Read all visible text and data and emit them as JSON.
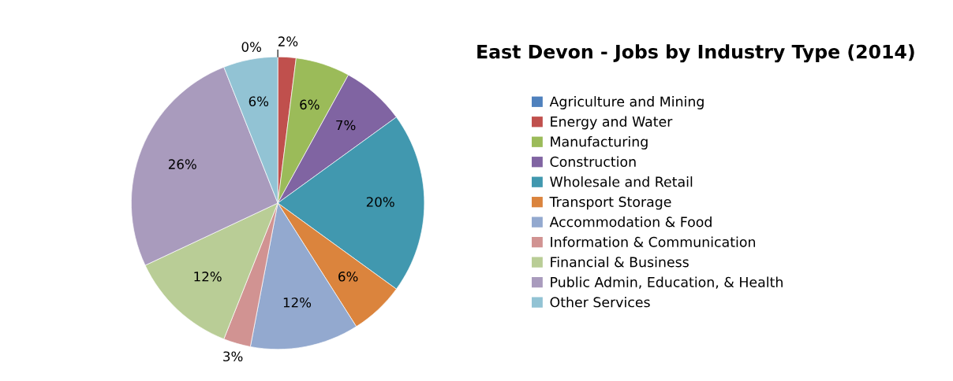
{
  "chart_data": {
    "type": "pie",
    "title": "East Devon - Jobs by Industry Type (2014)",
    "categories": [
      "Agriculture and Mining",
      "Energy and Water",
      "Manufacturing",
      "Construction",
      "Wholesale and Retail",
      "Transport Storage",
      "Accommodation & Food",
      "Information & Communication",
      "Financial & Business",
      "Public Admin, Education, & Health",
      "Other Services"
    ],
    "values": [
      0,
      2,
      6,
      7,
      20,
      6,
      12,
      3,
      12,
      26,
      6
    ],
    "colors": [
      "#4f81bd",
      "#c0504d",
      "#9bbb59",
      "#8064a2",
      "#4198af",
      "#db843d",
      "#93a9cf",
      "#d19392",
      "#b9cd96",
      "#a99bbd",
      "#92c3d4"
    ],
    "value_labels": [
      "0%",
      "2%",
      "6%",
      "7%",
      "20%",
      "6%",
      "12%",
      "3%",
      "12%",
      "26%",
      "6%"
    ],
    "legend": "right"
  }
}
